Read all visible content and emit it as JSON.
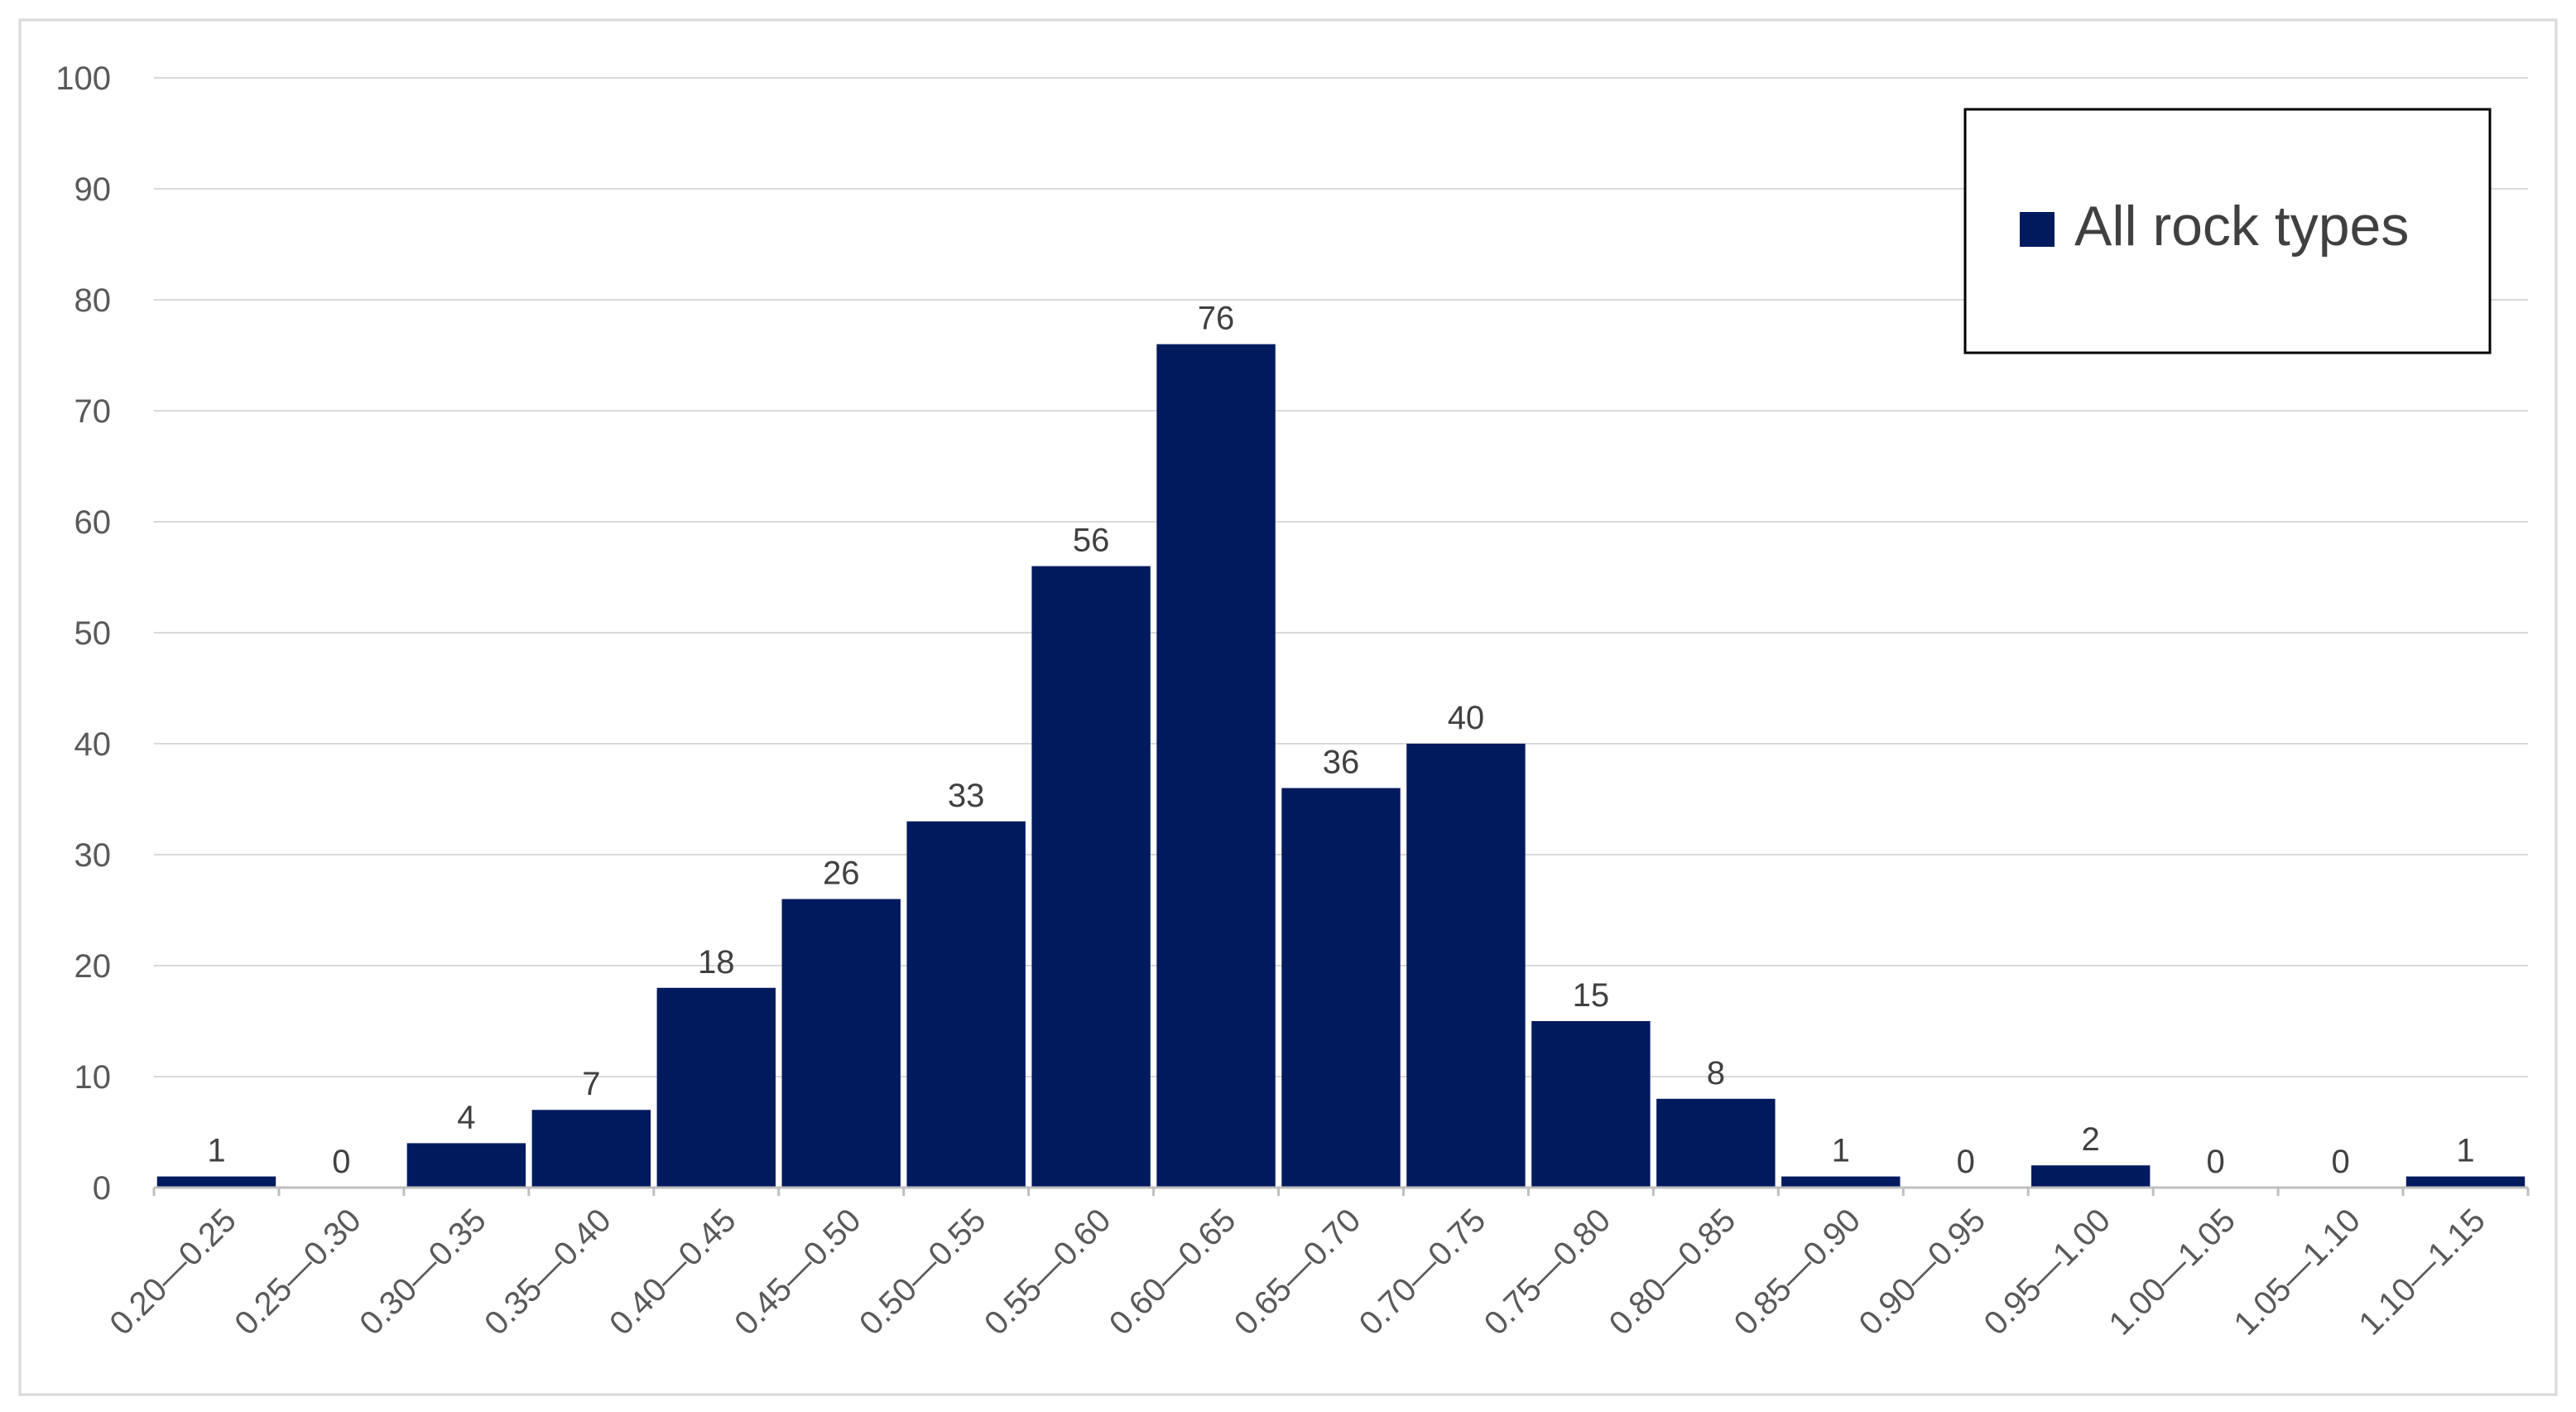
{
  "chart_data": {
    "type": "bar",
    "title": "",
    "xlabel": "",
    "ylabel": "",
    "ylim": [
      0,
      100
    ],
    "yticks": [
      0,
      10,
      20,
      30,
      40,
      50,
      60,
      70,
      80,
      90,
      100
    ],
    "grid": "horizontal",
    "legend_position": "top-right",
    "categories": [
      "0.20—0.25",
      "0.25—0.30",
      "0.30—0.35",
      "0.35—0.40",
      "0.40—0.45",
      "0.45—0.50",
      "0.50—0.55",
      "0.55—0.60",
      "0.60—0.65",
      "0.65—0.70",
      "0.70—0.75",
      "0.75—0.80",
      "0.80—0.85",
      "0.85—0.90",
      "0.90—0.95",
      "0.95—1.00",
      "1.00—1.05",
      "1.05—1.10",
      "1.10—1.15"
    ],
    "series": [
      {
        "name": "All rock types",
        "color": "#001A5E",
        "values": [
          1,
          0,
          4,
          7,
          18,
          26,
          33,
          56,
          76,
          36,
          40,
          15,
          8,
          1,
          0,
          2,
          0,
          0,
          1
        ]
      }
    ]
  },
  "colors": {
    "bar": "#001A5E",
    "grid": "#D9D9D9",
    "axis": "#BFBFBF",
    "text": "#595959",
    "data_label": "#404040",
    "frame": "#D9D9D9",
    "legend_border": "#000000",
    "background": "#FFFFFF"
  }
}
